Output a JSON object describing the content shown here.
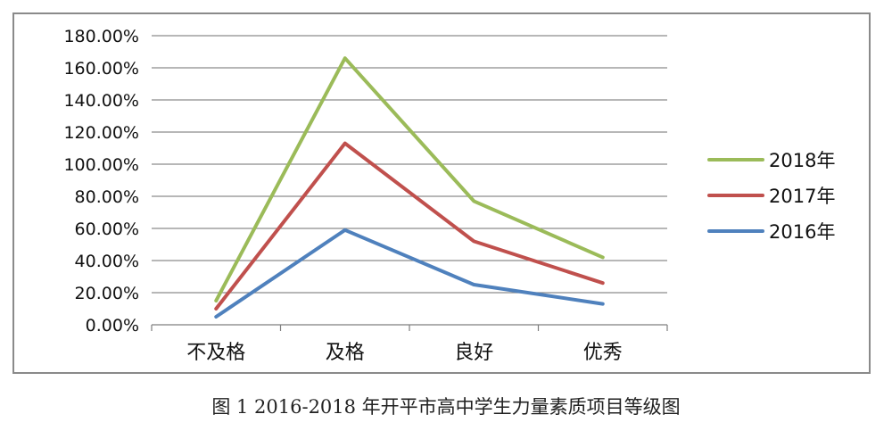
{
  "caption": "图 1 2016-2018 年开平市高中学生力量素质项目等级图",
  "chart_data": {
    "type": "line",
    "categories": [
      "不及格",
      "及格",
      "良好",
      "优秀"
    ],
    "y_ticks": [
      "0.00%",
      "20.00%",
      "40.00%",
      "60.00%",
      "80.00%",
      "100.00%",
      "120.00%",
      "140.00%",
      "160.00%",
      "180.00%"
    ],
    "ylim": [
      0,
      180
    ],
    "y_unit": "%",
    "grid": true,
    "legend_position": "right",
    "series": [
      {
        "name": "2018年",
        "color": "#9bbb59",
        "values": [
          15,
          166,
          77,
          42
        ]
      },
      {
        "name": "2017年",
        "color": "#c0504d",
        "values": [
          10,
          113,
          52,
          26
        ]
      },
      {
        "name": "2016年",
        "color": "#4f81bd",
        "values": [
          5,
          59,
          25,
          13
        ]
      }
    ]
  }
}
